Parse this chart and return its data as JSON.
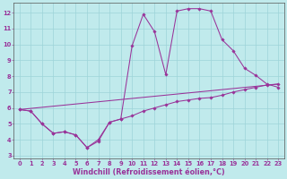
{
  "xlabel": "Windchill (Refroidissement éolien,°C)",
  "xlim": [
    -0.5,
    23.5
  ],
  "ylim": [
    2.8,
    12.6
  ],
  "yticks": [
    3,
    4,
    5,
    6,
    7,
    8,
    9,
    10,
    11,
    12
  ],
  "xticks": [
    0,
    1,
    2,
    3,
    4,
    5,
    6,
    7,
    8,
    9,
    10,
    11,
    12,
    13,
    14,
    15,
    16,
    17,
    18,
    19,
    20,
    21,
    22,
    23
  ],
  "bg_color": "#c0eaec",
  "grid_color": "#9dd4d8",
  "line_color": "#993399",
  "line1_x": [
    0,
    1,
    2,
    3,
    4,
    5,
    6,
    7,
    8,
    9,
    10,
    11,
    12,
    13,
    14,
    15,
    16,
    17,
    18,
    19,
    20,
    21,
    22,
    23
  ],
  "line1_y": [
    5.9,
    5.8,
    5.0,
    4.4,
    4.5,
    4.3,
    3.5,
    4.0,
    5.1,
    5.3,
    5.5,
    5.8,
    6.0,
    6.2,
    6.4,
    6.5,
    6.6,
    6.65,
    6.8,
    7.0,
    7.15,
    7.3,
    7.45,
    7.5
  ],
  "line2_x": [
    0,
    1,
    2,
    3,
    4,
    5,
    6,
    7,
    8,
    9,
    10,
    11,
    12,
    13,
    14,
    15,
    16,
    17,
    18,
    19,
    20,
    21,
    22,
    23
  ],
  "line2_y": [
    5.9,
    5.8,
    5.0,
    4.4,
    4.5,
    4.3,
    3.5,
    3.9,
    5.1,
    5.3,
    9.9,
    11.9,
    10.8,
    8.1,
    12.1,
    12.25,
    12.25,
    12.1,
    10.3,
    9.6,
    8.5,
    8.05,
    7.5,
    7.3
  ],
  "line3_x": [
    0,
    23
  ],
  "line3_y": [
    5.9,
    7.5
  ],
  "markersize": 1.8,
  "linewidth": 0.75,
  "tick_fontsize": 4.8,
  "label_fontsize": 5.8
}
